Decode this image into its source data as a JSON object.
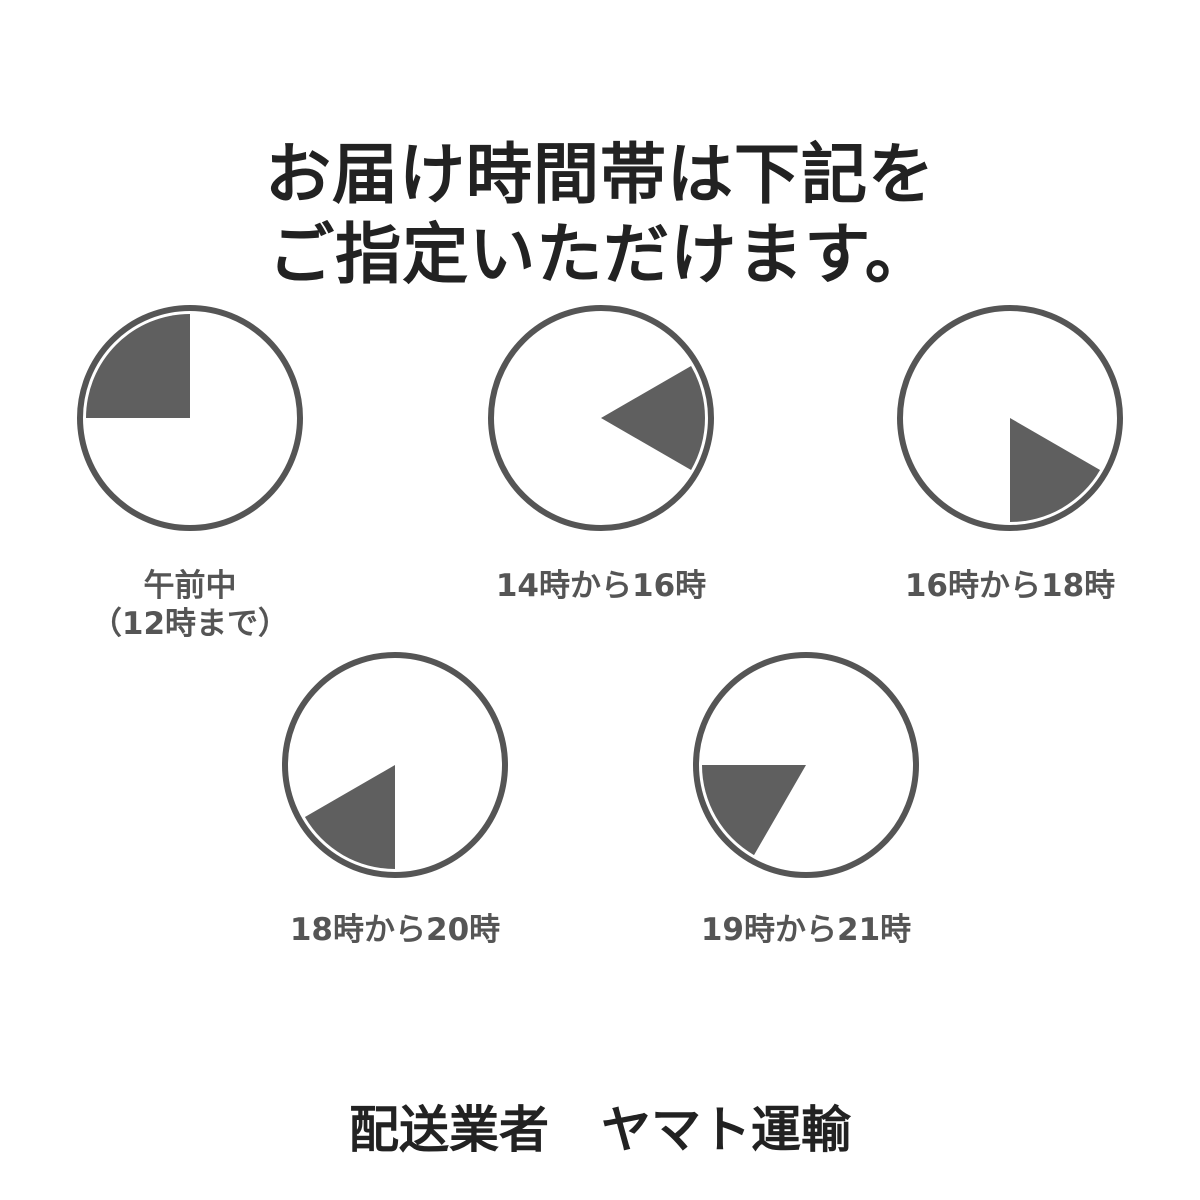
{
  "title": {
    "line1": "お届け時間帯は下記を",
    "line2": "ご指定いただけます。"
  },
  "colors": {
    "ring": "#555555",
    "wedge": "#5f5f5f",
    "label": "#555555",
    "title": "#222222"
  },
  "clocks": [
    {
      "label": "午前中",
      "sublabel": "（12時まで）",
      "start_hour": 9,
      "end_hour": 12
    },
    {
      "label": "14時から16時",
      "start_hour": 14,
      "end_hour": 16
    },
    {
      "label": "16時から18時",
      "start_hour": 16,
      "end_hour": 18
    },
    {
      "label": "18時から20時",
      "start_hour": 18,
      "end_hour": 20
    },
    {
      "label": "19時から21時",
      "start_hour": 19,
      "end_hour": 21
    }
  ],
  "footer": {
    "carrier_label": "配送業者",
    "carrier_name": "ヤマト運輸"
  }
}
